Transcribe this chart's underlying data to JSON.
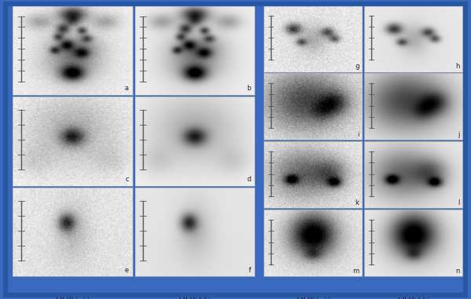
{
  "fig_width": 6.0,
  "fig_height": 3.81,
  "dpi": 100,
  "outer_bg": "#3a6abf",
  "inner_bg": "#ffffff",
  "panel_bg": "#ffffff",
  "grid_color": "#cccccc",
  "col_labels": [
    "DLR（−）",
    "DLR（＋）",
    "DLR（−）",
    "DLR（＋）"
  ],
  "col_label_fontsize": 7.5,
  "letter_fontsize": 6.0,
  "scalebar_color": "#555555"
}
